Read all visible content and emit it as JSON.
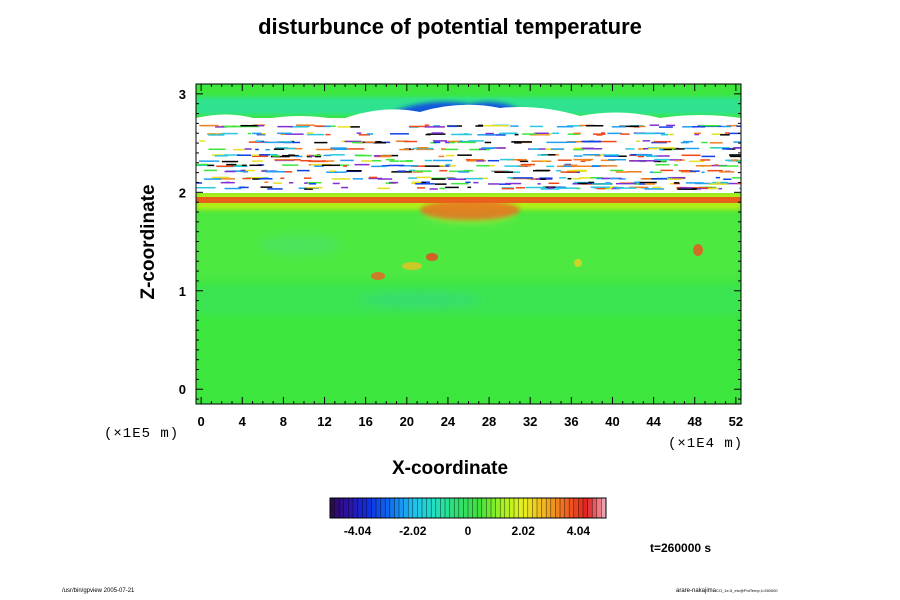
{
  "chart_data": {
    "type": "heatmap",
    "title": "disturbunce of potential temperature",
    "xlabel": "X-coordinate",
    "ylabel": "Z-coordinate",
    "x_unit": "(×1E4 m)",
    "y_unit": "(×1E5 m)",
    "xlim": [
      -0.5,
      52.5
    ],
    "ylim": [
      -0.15,
      3.1
    ],
    "x_ticks": [
      "0",
      "4",
      "8",
      "12",
      "16",
      "20",
      "24",
      "28",
      "32",
      "36",
      "40",
      "44",
      "48",
      "52"
    ],
    "y_ticks": [
      "0",
      "1",
      "2",
      "3"
    ],
    "colorbar": {
      "range": [
        -5.05,
        5.05
      ],
      "tick_labels": [
        "-4.04",
        "-2.02",
        "0",
        "2.02",
        "4.04"
      ],
      "tick_values": [
        -4.04,
        -2.02,
        0,
        2.02,
        4.04
      ]
    },
    "field_summary": {
      "background_value": 0.5,
      "lower_band_z": [
        0,
        1.9
      ],
      "warm_layer_z": [
        1.88,
        1.98
      ],
      "missing_band_z": [
        2.0,
        2.72
      ],
      "top_layer_z": [
        2.72,
        3.1
      ],
      "top_min_value": -2.5
    }
  },
  "time_label": "t=260000 s",
  "footer": {
    "left": "/usr/bin/gpview 2005-07-21",
    "right": "arare-nakajima",
    "right_small": "CO_1e-5_etc@PotTemp,t=260000"
  },
  "colors": {
    "background": "#3CE63C",
    "frame": "#000000"
  }
}
